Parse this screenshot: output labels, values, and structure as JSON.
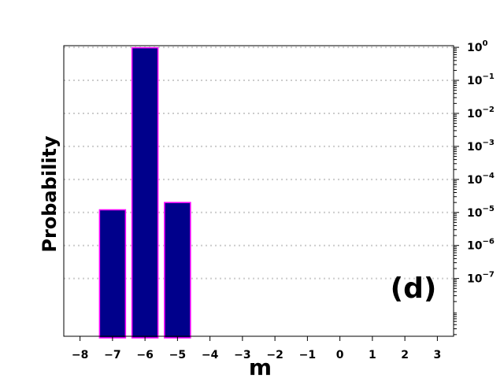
{
  "chart_data": {
    "type": "bar",
    "panel_label": "(d)",
    "xlabel": "m",
    "ylabel": "Probability",
    "y_scale": "log",
    "y_axis_side": "right",
    "x": [
      -7,
      -6,
      -5
    ],
    "values": [
      1.2e-05,
      0.97,
      2e-05
    ],
    "xlim": [
      -8.5,
      3.5
    ],
    "ylim_log10": [
      -8.75,
      0.05
    ],
    "x_ticks": [
      -8,
      -7,
      -6,
      -5,
      -4,
      -3,
      -2,
      -1,
      0,
      1,
      2,
      3
    ],
    "x_tick_labels": [
      "−8",
      "−7",
      "−6",
      "−5",
      "−4",
      "−3",
      "−2",
      "−1",
      "0",
      "1",
      "2",
      "3"
    ],
    "y_ticks": [
      {
        "exp": 0,
        "base": "10",
        "sup": "0"
      },
      {
        "exp": -1,
        "base": "10",
        "sup": "−1"
      },
      {
        "exp": -2,
        "base": "10",
        "sup": "−2"
      },
      {
        "exp": -3,
        "base": "10",
        "sup": "−3"
      },
      {
        "exp": -4,
        "base": "10",
        "sup": "−4"
      },
      {
        "exp": -5,
        "base": "10",
        "sup": "−5"
      },
      {
        "exp": -6,
        "base": "10",
        "sup": "−6"
      },
      {
        "exp": -7,
        "base": "10",
        "sup": "−7"
      }
    ],
    "grid": "horizontal dotted",
    "colors": {
      "bar_fill": "#00008b",
      "bar_edge": "#ff00ff",
      "grid": "#cccccc"
    }
  }
}
